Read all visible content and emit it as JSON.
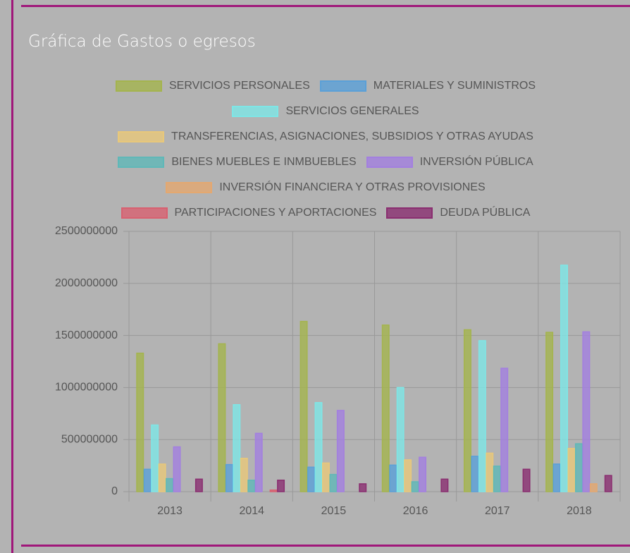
{
  "chart_data": {
    "type": "bar",
    "title": "Gráfica de Gastos o egresos",
    "categories": [
      "2013",
      "2014",
      "2015",
      "2016",
      "2017",
      "2018"
    ],
    "series": [
      {
        "name": "SERVICIOS PERSONALES",
        "color": "#a4b44e",
        "values": [
          1330000000,
          1420000000,
          1635000000,
          1600000000,
          1555000000,
          1530000000
        ]
      },
      {
        "name": "MATERIALES Y SUMINISTROS",
        "color": "#5aa0d8",
        "values": [
          215000000,
          260000000,
          235000000,
          255000000,
          340000000,
          265000000
        ]
      },
      {
        "name": "SERVICIOS GENERALES",
        "color": "#7ee6e6",
        "values": [
          640000000,
          835000000,
          855000000,
          1000000000,
          1450000000,
          2175000000
        ]
      },
      {
        "name": "TRANSFERENCIAS, ASIGNACIONES, SUBSIDIOS Y OTRAS AYUDAS",
        "color": "#e8c87a",
        "values": [
          265000000,
          320000000,
          275000000,
          305000000,
          370000000,
          415000000
        ]
      },
      {
        "name": "BIENES MUEBLES E INMBUEBLES",
        "color": "#5fb8b8",
        "values": [
          125000000,
          110000000,
          165000000,
          95000000,
          245000000,
          460000000
        ]
      },
      {
        "name": "INVERSIÓN PÚBLICA",
        "color": "#a37fe0",
        "values": [
          430000000,
          560000000,
          780000000,
          330000000,
          1185000000,
          1535000000
        ]
      },
      {
        "name": "INVERSIÓN FINANCIERA Y OTRAS PROVISIONES",
        "color": "#e4a870",
        "values": [
          0,
          0,
          0,
          0,
          0,
          75000000
        ]
      },
      {
        "name": "PARTICIPACIONES Y APORTACIONES",
        "color": "#d86070",
        "values": [
          0,
          15000000,
          0,
          0,
          0,
          0
        ]
      },
      {
        "name": "DEUDA PÚBLICA",
        "color": "#8a2e70",
        "values": [
          120000000,
          110000000,
          75000000,
          120000000,
          215000000,
          155000000
        ]
      }
    ],
    "ylim": [
      0,
      2500000000
    ],
    "yticks": [
      0,
      500000000,
      1000000000,
      1500000000,
      2000000000,
      2500000000
    ],
    "grid": true
  }
}
